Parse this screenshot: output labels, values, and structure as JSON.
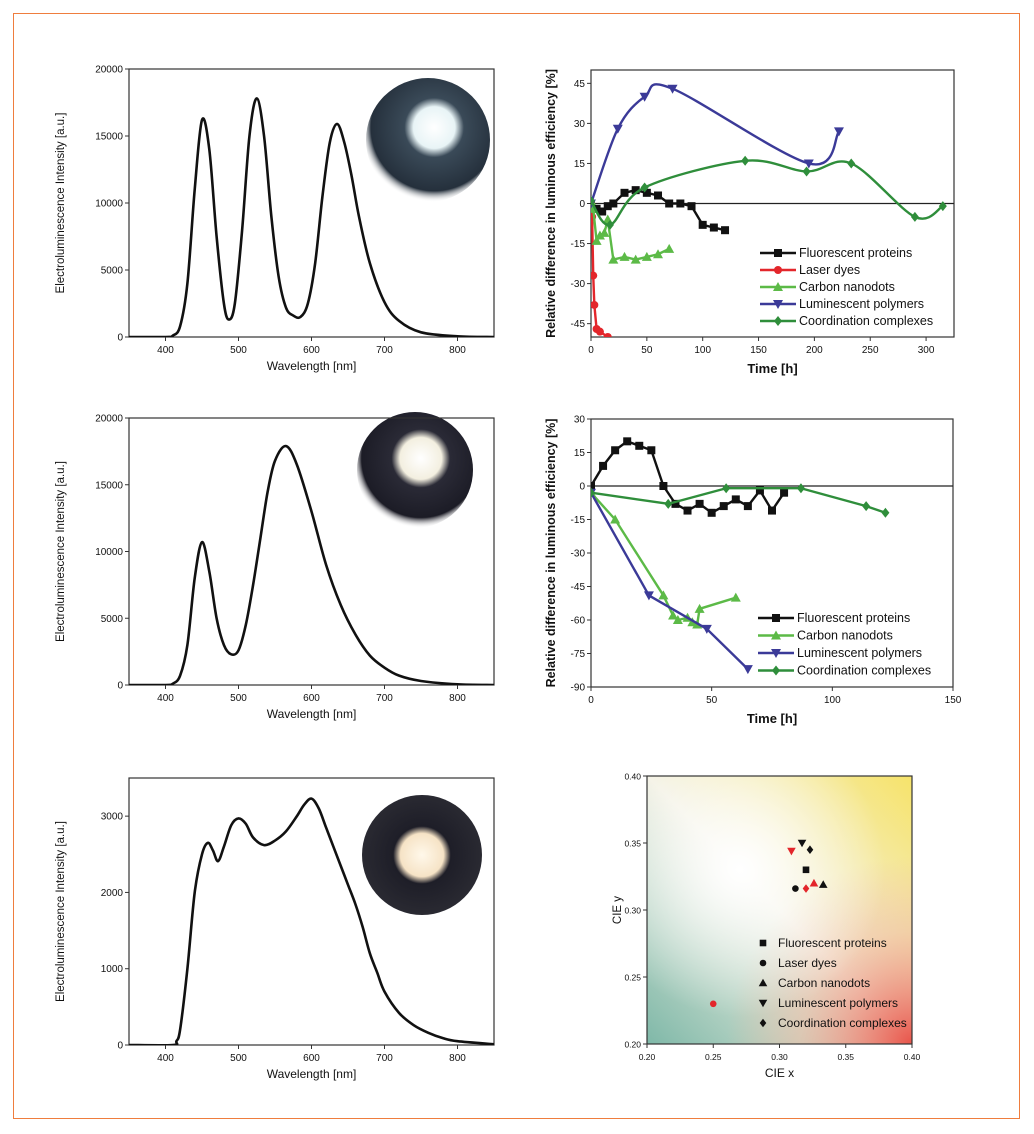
{
  "colors": {
    "border": "#ef7d3e",
    "black": "#111111",
    "red": "#e3262b",
    "light_green": "#5cba47",
    "blue": "#3b3a98",
    "dark_green": "#2f8e3b"
  },
  "chart_data": [
    {
      "id": "spectrum-1",
      "type": "line",
      "xlabel": "Wavelength [nm]",
      "ylabel": "Electroluminescence Intensity [a.u.]",
      "xlim": [
        350,
        850
      ],
      "ylim": [
        0,
        20000
      ],
      "xticks": [
        400,
        500,
        600,
        700,
        800
      ],
      "yticks": [
        0,
        5000,
        10000,
        15000,
        20000
      ],
      "inset_photo": "white-led-photo",
      "series": [
        {
          "color": "#111111",
          "x": [
            350,
            400,
            410,
            420,
            430,
            440,
            450,
            460,
            470,
            480,
            487,
            495,
            505,
            515,
            525,
            535,
            545,
            555,
            565,
            575,
            585,
            595,
            605,
            615,
            625,
            635,
            645,
            655,
            665,
            680,
            700,
            720,
            750,
            800,
            850
          ],
          "y": [
            0,
            0,
            100,
            800,
            4000,
            11000,
            16200,
            14000,
            7500,
            2500,
            1300,
            2500,
            8000,
            15000,
            17800,
            15000,
            9000,
            4500,
            2200,
            1600,
            1500,
            2500,
            5500,
            10500,
            14500,
            15900,
            14500,
            12000,
            9000,
            5500,
            2600,
            1200,
            350,
            50,
            0
          ]
        }
      ]
    },
    {
      "id": "stability-1",
      "type": "line",
      "xlabel": "Time [h]",
      "ylabel": "Relative difference in luminous efficiency [%]",
      "xlim": [
        0,
        325
      ],
      "ylim": [
        -50,
        50
      ],
      "xticks": [
        0,
        50,
        100,
        150,
        200,
        250,
        300
      ],
      "yticks": [
        -45,
        -30,
        -15,
        0,
        15,
        30,
        45
      ],
      "zero_line": true,
      "legend_position": "bottom-right",
      "series": [
        {
          "name": "Fluorescent proteins",
          "color": "#111111",
          "marker": "square",
          "smooth": false,
          "x": [
            0,
            5,
            10,
            15,
            20,
            30,
            40,
            50,
            60,
            70,
            80,
            90,
            100,
            110,
            120
          ],
          "y": [
            0,
            -2,
            -3,
            -1,
            0,
            4,
            5,
            4,
            3,
            0,
            0,
            -1,
            -8,
            -9,
            -10
          ]
        },
        {
          "name": "Laser dyes",
          "color": "#e3262b",
          "marker": "circle",
          "smooth": false,
          "x": [
            0,
            1,
            2,
            3,
            5,
            8,
            15
          ],
          "y": [
            0,
            -5,
            -27,
            -38,
            -47,
            -48,
            -50
          ]
        },
        {
          "name": "Carbon nanodots",
          "color": "#5cba47",
          "marker": "triangle-up",
          "smooth": false,
          "x": [
            0,
            2,
            5,
            8,
            12,
            15,
            20,
            30,
            40,
            50,
            60,
            70
          ],
          "y": [
            1,
            -2,
            -14,
            -12,
            -11,
            -6,
            -21,
            -20,
            -21,
            -20,
            -19,
            -17
          ]
        },
        {
          "name": "Luminescent polymers",
          "color": "#3b3a98",
          "marker": "triangle-down",
          "smooth": true,
          "x": [
            0,
            24,
            48,
            73,
            195,
            222
          ],
          "y": [
            0,
            28,
            40,
            43,
            15,
            27
          ]
        },
        {
          "name": "Coordination complexes",
          "color": "#2f8e3b",
          "marker": "diamond",
          "smooth": true,
          "x": [
            0,
            17,
            48,
            138,
            193,
            233,
            290,
            315
          ],
          "y": [
            1,
            -8,
            6,
            16,
            12,
            15,
            -5,
            -1
          ]
        }
      ]
    },
    {
      "id": "spectrum-2",
      "type": "line",
      "xlabel": "Wavelength [nm]",
      "ylabel": "Electroluminescence Intensity [a.u.]",
      "xlim": [
        350,
        850
      ],
      "ylim": [
        0,
        20000
      ],
      "xticks": [
        400,
        500,
        600,
        700,
        800
      ],
      "yticks": [
        0,
        5000,
        10000,
        15000,
        20000
      ],
      "inset_photo": "white-led-photo",
      "series": [
        {
          "color": "#111111",
          "x": [
            350,
            400,
            410,
            420,
            430,
            440,
            450,
            460,
            470,
            480,
            490,
            500,
            510,
            520,
            530,
            540,
            550,
            565,
            580,
            600,
            620,
            640,
            660,
            680,
            700,
            720,
            750,
            800,
            850
          ],
          "y": [
            0,
            0,
            100,
            700,
            3000,
            8000,
            10700,
            8500,
            5000,
            3000,
            2300,
            2600,
            4500,
            7500,
            11000,
            14500,
            16800,
            17900,
            16500,
            13000,
            9000,
            6000,
            3800,
            2200,
            1300,
            700,
            300,
            50,
            0
          ]
        }
      ]
    },
    {
      "id": "stability-2",
      "type": "line",
      "xlabel": "Time [h]",
      "ylabel": "Relative difference in luminous efficiency [%]",
      "xlim": [
        0,
        150
      ],
      "ylim": [
        -90,
        30
      ],
      "xticks": [
        0,
        50,
        100,
        150
      ],
      "yticks": [
        -90,
        -75,
        -60,
        -45,
        -30,
        -15,
        0,
        15,
        30
      ],
      "zero_line": true,
      "legend_position": "bottom-right",
      "series": [
        {
          "name": "Fluorescent proteins",
          "color": "#111111",
          "marker": "square",
          "smooth": false,
          "x": [
            0,
            5,
            10,
            15,
            20,
            25,
            30,
            35,
            40,
            45,
            50,
            55,
            60,
            65,
            70,
            75,
            80
          ],
          "y": [
            0,
            9,
            16,
            20,
            18,
            16,
            0,
            -8,
            -11,
            -8,
            -12,
            -9,
            -6,
            -9,
            -2,
            -11,
            -3
          ]
        },
        {
          "name": "Carbon nanodots",
          "color": "#5cba47",
          "marker": "triangle-up",
          "smooth": false,
          "x": [
            0,
            10,
            30,
            34,
            36,
            40,
            42,
            44,
            45,
            60
          ],
          "y": [
            -3,
            -15,
            -49,
            -58,
            -60,
            -59,
            -61,
            -62,
            -55,
            -50
          ]
        },
        {
          "name": "Luminescent polymers",
          "color": "#3b3a98",
          "marker": "triangle-down",
          "smooth": false,
          "x": [
            0,
            24,
            48,
            65
          ],
          "y": [
            -3,
            -49,
            -64,
            -82
          ]
        },
        {
          "name": "Coordination complexes",
          "color": "#2f8e3b",
          "marker": "diamond",
          "smooth": false,
          "x": [
            0,
            32,
            56,
            87,
            114,
            122
          ],
          "y": [
            -3,
            -8,
            -1,
            -1,
            -9,
            -12
          ]
        }
      ]
    },
    {
      "id": "spectrum-3",
      "type": "line",
      "xlabel": "Wavelength [nm]",
      "ylabel": "Electroluminescence Intensity [a.u.]",
      "xlim": [
        350,
        850
      ],
      "ylim": [
        0,
        3500
      ],
      "xticks": [
        400,
        500,
        600,
        700,
        800
      ],
      "yticks": [
        0,
        1000,
        2000,
        3000
      ],
      "inset_photo": "led-board-photo",
      "series": [
        {
          "color": "#111111",
          "x": [
            350,
            410,
            415,
            420,
            430,
            440,
            450,
            458,
            465,
            472,
            480,
            490,
            500,
            510,
            520,
            535,
            550,
            565,
            580,
            590,
            600,
            610,
            620,
            630,
            640,
            650,
            660,
            670,
            680,
            690,
            700,
            720,
            740,
            760,
            780,
            800,
            850
          ],
          "y": [
            0,
            0,
            50,
            200,
            1000,
            2000,
            2500,
            2650,
            2550,
            2410,
            2600,
            2880,
            2970,
            2900,
            2720,
            2620,
            2680,
            2800,
            3000,
            3150,
            3230,
            3100,
            2850,
            2600,
            2350,
            2100,
            1850,
            1550,
            1200,
            950,
            700,
            420,
            260,
            160,
            90,
            50,
            10
          ]
        }
      ]
    },
    {
      "id": "cie-diagram",
      "type": "scatter",
      "xlabel": "CIE x",
      "ylabel": "CIE y",
      "xlim": [
        0.2,
        0.4
      ],
      "ylim": [
        0.2,
        0.4
      ],
      "xticks": [
        "0.20",
        "0.25",
        "0.30",
        "0.35",
        "0.40"
      ],
      "yticks": [
        "0.20",
        "0.25",
        "0.30",
        "0.35",
        "0.40"
      ],
      "background": "color-gamut",
      "legend_position": "bottom-right",
      "legend": [
        {
          "name": "Fluorescent proteins",
          "marker": "square"
        },
        {
          "name": "Laser dyes",
          "marker": "circle"
        },
        {
          "name": "Carbon nanodots",
          "marker": "triangle-up"
        },
        {
          "name": "Luminescent polymers",
          "marker": "triangle-down"
        },
        {
          "name": "Coordination complexes",
          "marker": "diamond"
        }
      ],
      "points": [
        {
          "x": 0.32,
          "y": 0.33,
          "marker": "square",
          "color": "#111111"
        },
        {
          "x": 0.25,
          "y": 0.23,
          "marker": "circle",
          "color": "#e3262b"
        },
        {
          "x": 0.312,
          "y": 0.316,
          "marker": "circle",
          "color": "#111111"
        },
        {
          "x": 0.326,
          "y": 0.32,
          "marker": "triangle-up",
          "color": "#e3262b"
        },
        {
          "x": 0.333,
          "y": 0.319,
          "marker": "triangle-up",
          "color": "#111111"
        },
        {
          "x": 0.309,
          "y": 0.344,
          "marker": "triangle-down",
          "color": "#e3262b"
        },
        {
          "x": 0.317,
          "y": 0.35,
          "marker": "triangle-down",
          "color": "#111111"
        },
        {
          "x": 0.32,
          "y": 0.316,
          "marker": "diamond",
          "color": "#e3262b"
        },
        {
          "x": 0.323,
          "y": 0.345,
          "marker": "diamond",
          "color": "#111111"
        }
      ]
    }
  ]
}
